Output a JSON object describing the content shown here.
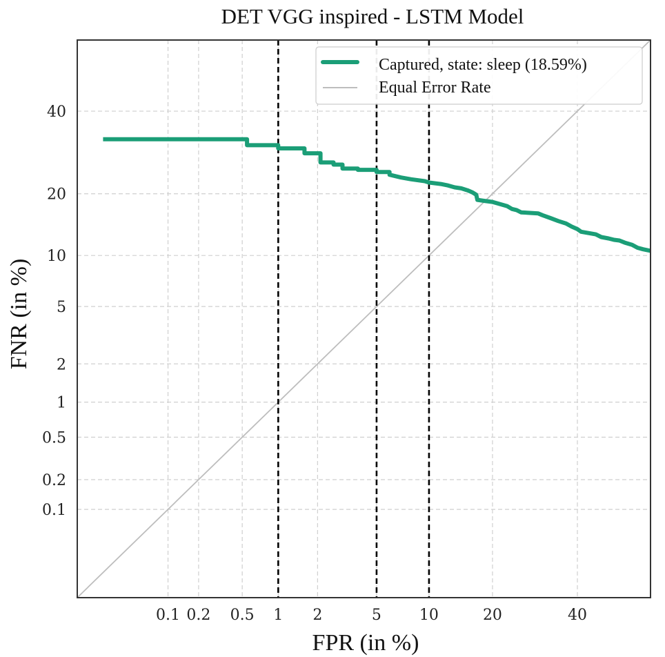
{
  "chart_data": {
    "type": "line",
    "title": "DET VGG inspired - LSTM Model",
    "xlabel": "FPR (in %)",
    "ylabel": "FNR (in %)",
    "scale": "probit",
    "xlim": [
      0.01,
      60
    ],
    "ylim": [
      0.01,
      60
    ],
    "grid": true,
    "x_ticks": [
      {
        "value": 0.1,
        "label": "0.1"
      },
      {
        "value": 0.2,
        "label": "0.2"
      },
      {
        "value": 0.5,
        "label": "0.5"
      },
      {
        "value": 1,
        "label": "1"
      },
      {
        "value": 2,
        "label": "2"
      },
      {
        "value": 5,
        "label": "5"
      },
      {
        "value": 10,
        "label": "10"
      },
      {
        "value": 20,
        "label": "20"
      },
      {
        "value": 40,
        "label": "40"
      }
    ],
    "y_ticks": [
      {
        "value": 0.1,
        "label": "0.1"
      },
      {
        "value": 0.2,
        "label": "0.2"
      },
      {
        "value": 0.5,
        "label": "0.5"
      },
      {
        "value": 1,
        "label": "1"
      },
      {
        "value": 2,
        "label": "2"
      },
      {
        "value": 5,
        "label": "5"
      },
      {
        "value": 10,
        "label": "10"
      },
      {
        "value": 20,
        "label": "20"
      },
      {
        "value": 40,
        "label": "40"
      }
    ],
    "vertical_lines": [
      1,
      5,
      10
    ],
    "series": [
      {
        "name": "Captured, state: sleep (18.59%)",
        "color": "#1b9e77",
        "style": "step",
        "points": [
          [
            0.02,
            32.5
          ],
          [
            0.55,
            32.5
          ],
          [
            0.55,
            31.0
          ],
          [
            1.0,
            31.0
          ],
          [
            1.0,
            30.2
          ],
          [
            1.6,
            30.2
          ],
          [
            1.6,
            29.0
          ],
          [
            2.1,
            29.0
          ],
          [
            2.1,
            26.8
          ],
          [
            2.6,
            26.8
          ],
          [
            2.6,
            26.3
          ],
          [
            3.0,
            26.3
          ],
          [
            3.0,
            25.4
          ],
          [
            3.8,
            25.4
          ],
          [
            3.8,
            25.1
          ],
          [
            5.0,
            25.1
          ],
          [
            5.0,
            24.6
          ],
          [
            6.0,
            24.6
          ],
          [
            6.0,
            24.0
          ],
          [
            7.0,
            23.4
          ],
          [
            8.0,
            23.0
          ],
          [
            9.5,
            22.6
          ],
          [
            10.0,
            22.3
          ],
          [
            11.5,
            22.0
          ],
          [
            12.5,
            21.7
          ],
          [
            13.5,
            21.3
          ],
          [
            14.5,
            21.1
          ],
          [
            15.5,
            20.7
          ],
          [
            16.3,
            20.3
          ],
          [
            17.0,
            19.8
          ],
          [
            17.2,
            18.8
          ],
          [
            18.5,
            18.6
          ],
          [
            20.0,
            18.4
          ],
          [
            21.5,
            18.0
          ],
          [
            23.0,
            17.6
          ],
          [
            24.0,
            17.1
          ],
          [
            25.0,
            16.9
          ],
          [
            26.0,
            16.5
          ],
          [
            28.0,
            16.4
          ],
          [
            30.0,
            16.3
          ],
          [
            31.0,
            16.0
          ],
          [
            33.0,
            15.5
          ],
          [
            35.0,
            15.0
          ],
          [
            37.0,
            14.6
          ],
          [
            38.5,
            14.1
          ],
          [
            40.0,
            13.7
          ],
          [
            41.0,
            13.3
          ],
          [
            43.0,
            13.1
          ],
          [
            45.0,
            12.9
          ],
          [
            46.5,
            12.5
          ],
          [
            48.5,
            12.3
          ],
          [
            50.0,
            12.1
          ],
          [
            51.5,
            12.0
          ],
          [
            53.0,
            11.7
          ],
          [
            55.0,
            11.4
          ],
          [
            56.5,
            11.0
          ],
          [
            58.0,
            10.8
          ],
          [
            60.0,
            10.6
          ]
        ]
      },
      {
        "name": "Equal Error Rate",
        "color": "#bdbdbd",
        "style": "diagonal",
        "points": [
          [
            0.01,
            0.01
          ],
          [
            60,
            60
          ]
        ]
      }
    ],
    "legend": {
      "position": "top-right",
      "entries": [
        "Captured, state: sleep (18.59%)",
        "Equal Error Rate"
      ]
    }
  }
}
